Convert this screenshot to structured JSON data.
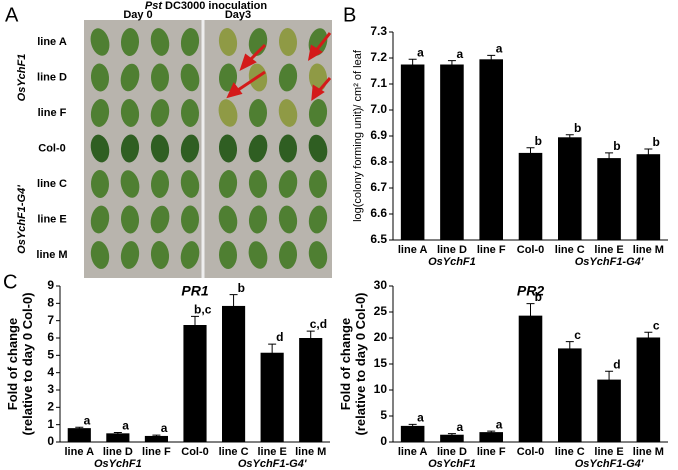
{
  "panel_labels": [
    "A",
    "B",
    "C"
  ],
  "photo": {
    "title_strain": "Pst",
    "title": "DC3000 inoculation",
    "days": [
      "Day 0",
      "Day3"
    ],
    "rows": [
      "line A",
      "line D",
      "line F",
      "Col-0",
      "line C",
      "line E",
      "line M"
    ],
    "groups": [
      "OsYchF1",
      "OsYchF1-G4'"
    ]
  },
  "chart_data": [
    {
      "type": "bar",
      "y_label": [
        "log(colony forming unit)/ cm² of leaf"
      ],
      "categories": [
        "line A",
        "line D",
        "line F",
        "Col-0",
        "line C",
        "line E",
        "line M"
      ],
      "groups": [
        "OsYchF1",
        "OsYchF1-G4'"
      ],
      "values": [
        7.175,
        7.175,
        7.195,
        6.835,
        6.895,
        6.815,
        6.83
      ],
      "errors": [
        0.02,
        0.015,
        0.015,
        0.02,
        0.01,
        0.02,
        0.02
      ],
      "letters": [
        "a",
        "a",
        "a",
        "b",
        "b",
        "b",
        "b"
      ],
      "color": "#000000",
      "ylim": [
        6.5,
        7.3
      ],
      "yticks": [
        6.5,
        6.6,
        6.7,
        6.8,
        6.9,
        {
          "value": 7,
          "label": "7.0"
        },
        7.1,
        7.2,
        7.3
      ]
    },
    {
      "type": "bar",
      "title": "PR1",
      "y_label": [
        "Fold of change",
        "(relative to day 0 Col-0)"
      ],
      "categories": [
        "line A",
        "line D",
        "line F",
        "Col-0",
        "line C",
        "line E",
        "line M"
      ],
      "groups": [
        "OsYchF1",
        "OsYchF1-G4'"
      ],
      "values": [
        0.8,
        0.5,
        0.35,
        6.75,
        7.85,
        5.15,
        6.0
      ],
      "errors": [
        0.05,
        0.05,
        0.05,
        0.5,
        0.65,
        0.5,
        0.4
      ],
      "letters": [
        "a",
        "a",
        "a",
        "b,c",
        "b",
        "d",
        "c,d"
      ],
      "color": "#000000",
      "ylim": [
        0,
        9
      ],
      "yticks": [
        0,
        1,
        2,
        3,
        4,
        5,
        6,
        7,
        8,
        9
      ]
    },
    {
      "type": "bar",
      "title": "PR2",
      "y_label": [
        "Fold of change",
        "(relative to day 0 Col-0)"
      ],
      "categories": [
        "line A",
        "line D",
        "line F",
        "Col-0",
        "line C",
        "line E",
        "line M"
      ],
      "groups": [
        "OsYchF1",
        "OsYchF1-G4'"
      ],
      "values": [
        3.1,
        1.4,
        1.9,
        24.3,
        18.0,
        12.0,
        20.1
      ],
      "errors": [
        0.3,
        0.2,
        0.2,
        2.3,
        1.3,
        1.6,
        1.0
      ],
      "letters": [
        "a",
        "a",
        "a",
        "b",
        "c",
        "d",
        "c"
      ],
      "color": "#000000",
      "ylim": [
        0,
        30
      ],
      "yticks": [
        0,
        5,
        10,
        15,
        20,
        25,
        30
      ]
    }
  ]
}
